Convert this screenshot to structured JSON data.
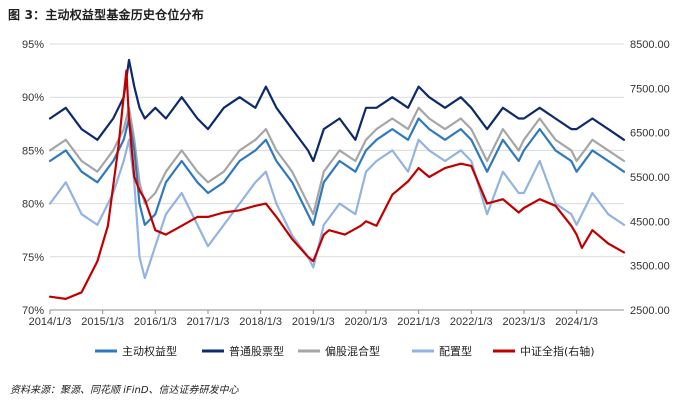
{
  "title": "图 3：主动权益型基金历史仓位分布",
  "source": "资料来源：聚源、同花顺 iFinD、信达证券研发中心",
  "chart_data": {
    "type": "line",
    "x_tick_labels": [
      "2014/1/3",
      "2015/1/3",
      "2016/1/3",
      "2017/1/3",
      "2018/1/3",
      "2019/1/3",
      "2020/1/3",
      "2021/1/3",
      "2022/1/3",
      "2023/1/3",
      "2024/1/3"
    ],
    "x_range": [
      2014.0,
      2024.9
    ],
    "left_axis": {
      "ticks": [
        70,
        75,
        80,
        85,
        90,
        95
      ],
      "tick_labels": [
        "70%",
        "75%",
        "80%",
        "85%",
        "90%",
        "95%"
      ],
      "range": [
        70,
        95
      ]
    },
    "right_axis": {
      "ticks": [
        2500,
        3500,
        4500,
        5500,
        6500,
        7500,
        8500
      ],
      "tick_labels": [
        "2500.00",
        "3500.00",
        "4500.00",
        "5500.00",
        "6500.00",
        "7500.00",
        "8500.00"
      ],
      "range": [
        2500,
        8500
      ]
    },
    "series": [
      {
        "name": "主动权益型",
        "axis": "left",
        "color": "#2f79bd",
        "x": [
          2014.0,
          2014.3,
          2014.6,
          2014.9,
          2015.2,
          2015.4,
          2015.5,
          2015.6,
          2015.7,
          2015.8,
          2016.0,
          2016.2,
          2016.5,
          2016.8,
          2017.0,
          2017.3,
          2017.6,
          2017.9,
          2018.1,
          2018.3,
          2018.6,
          2018.9,
          2019.0,
          2019.2,
          2019.5,
          2019.8,
          2020.0,
          2020.2,
          2020.5,
          2020.8,
          2021.0,
          2021.2,
          2021.5,
          2021.8,
          2022.0,
          2022.3,
          2022.6,
          2022.9,
          2023.0,
          2023.3,
          2023.6,
          2023.9,
          2024.0,
          2024.3,
          2024.6,
          2024.9
        ],
        "values": [
          84,
          85,
          83,
          82,
          84,
          86,
          88,
          85,
          80,
          78,
          79,
          82,
          84,
          82,
          81,
          82,
          84,
          85,
          86,
          84,
          82,
          79,
          78,
          82,
          84,
          83,
          85,
          86,
          87,
          86,
          88,
          87,
          86,
          87,
          86,
          83,
          86,
          84,
          85,
          87,
          85,
          84,
          83,
          85,
          84,
          83
        ]
      },
      {
        "name": "普通股票型",
        "axis": "left",
        "color": "#0d2a6b",
        "x": [
          2014.0,
          2014.3,
          2014.6,
          2014.9,
          2015.2,
          2015.4,
          2015.5,
          2015.6,
          2015.7,
          2015.8,
          2016.0,
          2016.2,
          2016.5,
          2016.8,
          2017.0,
          2017.3,
          2017.6,
          2017.9,
          2018.1,
          2018.3,
          2018.6,
          2018.9,
          2019.0,
          2019.2,
          2019.5,
          2019.8,
          2020.0,
          2020.2,
          2020.5,
          2020.8,
          2021.0,
          2021.2,
          2021.5,
          2021.8,
          2022.0,
          2022.3,
          2022.6,
          2022.9,
          2023.0,
          2023.3,
          2023.6,
          2023.9,
          2024.0,
          2024.3,
          2024.6,
          2024.9
        ],
        "values": [
          88,
          89,
          87,
          86,
          88,
          90,
          93.5,
          91,
          89,
          88,
          89,
          88,
          90,
          88,
          87,
          89,
          90,
          89,
          91,
          89,
          87,
          85,
          84,
          87,
          88,
          86,
          89,
          89,
          90,
          89,
          91,
          90,
          89,
          90,
          89,
          87,
          89,
          88,
          88,
          89,
          88,
          87,
          87,
          88,
          87,
          86
        ]
      },
      {
        "name": "偏股混合型",
        "axis": "left",
        "color": "#a6a6a6",
        "x": [
          2014.0,
          2014.3,
          2014.6,
          2014.9,
          2015.2,
          2015.4,
          2015.5,
          2015.6,
          2015.7,
          2015.8,
          2016.0,
          2016.2,
          2016.5,
          2016.8,
          2017.0,
          2017.3,
          2017.6,
          2017.9,
          2018.1,
          2018.3,
          2018.6,
          2018.9,
          2019.0,
          2019.2,
          2019.5,
          2019.8,
          2020.0,
          2020.2,
          2020.5,
          2020.8,
          2021.0,
          2021.2,
          2021.5,
          2021.8,
          2022.0,
          2022.3,
          2022.6,
          2022.9,
          2023.0,
          2023.3,
          2023.6,
          2023.9,
          2024.0,
          2024.3,
          2024.6,
          2024.9
        ],
        "values": [
          85,
          86,
          84,
          83,
          85,
          87,
          89,
          86,
          82,
          80,
          81,
          83,
          85,
          83,
          82,
          83,
          85,
          86,
          87,
          85,
          83,
          80,
          79,
          83,
          85,
          84,
          86,
          87,
          88,
          87,
          89,
          88,
          87,
          88,
          87,
          84,
          87,
          85,
          86,
          88,
          86,
          85,
          84,
          86,
          85,
          84
        ]
      },
      {
        "name": "配置型",
        "axis": "left",
        "color": "#93b3e0",
        "x": [
          2014.0,
          2014.3,
          2014.6,
          2014.9,
          2015.2,
          2015.4,
          2015.5,
          2015.6,
          2015.7,
          2015.8,
          2016.0,
          2016.2,
          2016.5,
          2016.8,
          2017.0,
          2017.3,
          2017.6,
          2017.9,
          2018.1,
          2018.3,
          2018.6,
          2018.9,
          2019.0,
          2019.2,
          2019.5,
          2019.8,
          2020.0,
          2020.2,
          2020.5,
          2020.8,
          2021.0,
          2021.2,
          2021.5,
          2021.8,
          2022.0,
          2022.3,
          2022.6,
          2022.9,
          2023.0,
          2023.3,
          2023.6,
          2023.9,
          2024.0,
          2024.3,
          2024.6,
          2024.9
        ],
        "values": [
          80,
          82,
          79,
          78,
          81,
          84,
          86,
          82,
          75,
          73,
          76,
          79,
          81,
          78,
          76,
          78,
          80,
          82,
          83,
          80,
          77,
          75,
          74,
          78,
          80,
          79,
          83,
          84,
          85,
          83,
          86,
          85,
          84,
          85,
          84,
          79,
          83,
          81,
          81,
          84,
          80,
          79,
          78,
          81,
          79,
          78
        ]
      },
      {
        "name": "中证全指(右轴)",
        "axis": "right",
        "color": "#c00000",
        "x": [
          2014.0,
          2014.3,
          2014.6,
          2014.9,
          2015.1,
          2015.3,
          2015.45,
          2015.5,
          2015.6,
          2015.7,
          2015.8,
          2016.0,
          2016.2,
          2016.5,
          2016.8,
          2017.0,
          2017.3,
          2017.6,
          2017.9,
          2018.1,
          2018.3,
          2018.6,
          2018.9,
          2019.0,
          2019.2,
          2019.3,
          2019.6,
          2019.9,
          2020.0,
          2020.2,
          2020.5,
          2020.8,
          2021.0,
          2021.2,
          2021.5,
          2021.8,
          2022.0,
          2022.3,
          2022.6,
          2022.9,
          2023.0,
          2023.3,
          2023.6,
          2023.9,
          2024.0,
          2024.1,
          2024.3,
          2024.6,
          2024.9
        ],
        "values": [
          2800,
          2750,
          2900,
          3600,
          4400,
          6200,
          7900,
          6800,
          5500,
          5200,
          5000,
          4300,
          4200,
          4400,
          4600,
          4600,
          4700,
          4750,
          4850,
          4900,
          4600,
          4100,
          3700,
          3600,
          4200,
          4300,
          4200,
          4400,
          4500,
          4400,
          5100,
          5400,
          5700,
          5500,
          5700,
          5800,
          5750,
          4900,
          5000,
          4700,
          4800,
          5000,
          4850,
          4400,
          4200,
          3900,
          4300,
          4000,
          3800
        ]
      }
    ]
  }
}
